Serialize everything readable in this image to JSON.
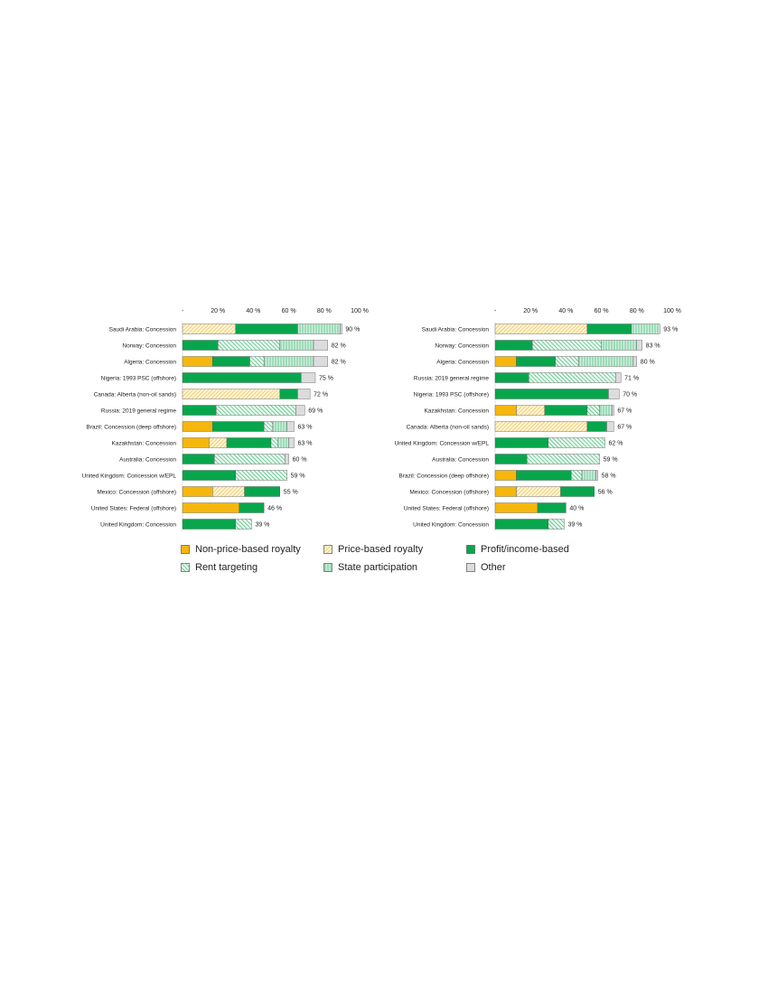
{
  "colors": {
    "non_price_royalty": "#f5b70d",
    "price_royalty": "#f7d98c",
    "profit": "#08a64c",
    "rent": "#08a64c",
    "state": "#9fdcba",
    "other": "#dcdcdc"
  },
  "legend": [
    {
      "key": "non_price_royalty",
      "label": "Non-price-based royalty"
    },
    {
      "key": "price_royalty",
      "label": "Price-based royalty"
    },
    {
      "key": "profit",
      "label": "Profit/income-based"
    },
    {
      "key": "rent",
      "label": "Rent targeting"
    },
    {
      "key": "state",
      "label": "State participation"
    },
    {
      "key": "other",
      "label": "Other"
    }
  ],
  "chart_data": [
    {
      "type": "bar",
      "orientation": "horizontal",
      "stacked": true,
      "xlim": [
        0,
        100
      ],
      "ticks": [
        "-",
        "20 %",
        "40 %",
        "60 %",
        "80 %",
        "100 %"
      ],
      "categories": [
        "Saudi Arabia: Concession",
        "Norway: Concession",
        "Algeria: Concession",
        "Nigeria: 1993 PSC (offshore)",
        "Canada: Alberta (non-oil sands)",
        "Russia: 2019 general regime",
        "Brazil: Concession (deep offshore)",
        "Kazakhstan: Concession",
        "Australia: Concession",
        "United Kingdom: Concession w/EPL",
        "Mexico: Concession (offshore)",
        "United States: Federal (offshore)",
        "United Kingdom: Concession"
      ],
      "totals": [
        "90 %",
        "82 %",
        "82 %",
        "75 %",
        "72 %",
        "69 %",
        "63 %",
        "63 %",
        "60 %",
        "59 %",
        "55 %",
        "46 %",
        "39 %"
      ],
      "series": [
        {
          "key": "non_price_royalty",
          "values": [
            0,
            0,
            17,
            0,
            0,
            0,
            17,
            15,
            0,
            0,
            17,
            32,
            0
          ]
        },
        {
          "key": "price_royalty",
          "values": [
            30,
            0,
            0,
            0,
            55,
            0,
            0,
            10,
            0,
            0,
            18,
            0,
            0
          ]
        },
        {
          "key": "profit",
          "values": [
            35,
            20,
            21,
            67,
            10,
            19,
            29,
            25,
            18,
            30,
            20,
            14,
            30
          ]
        },
        {
          "key": "rent",
          "values": [
            0,
            35,
            8,
            0,
            0,
            45,
            5,
            4,
            40,
            29,
            0,
            0,
            9
          ]
        },
        {
          "key": "state",
          "values": [
            24,
            19,
            28,
            0,
            0,
            0,
            8,
            6,
            0,
            0,
            0,
            0,
            0
          ]
        },
        {
          "key": "other",
          "values": [
            1,
            8,
            8,
            8,
            7,
            5,
            4,
            3,
            2,
            0,
            0,
            0,
            0
          ]
        }
      ]
    },
    {
      "type": "bar",
      "orientation": "horizontal",
      "stacked": true,
      "xlim": [
        0,
        100
      ],
      "ticks": [
        "-",
        "20 %",
        "40 %",
        "60 %",
        "80 %",
        "100 %"
      ],
      "categories": [
        "Saudi Arabia: Concession",
        "Norway: Concession",
        "Algeria: Concession",
        "Russia: 2019 general regime",
        "Nigeria: 1993 PSC (offshore)",
        "Kazakhstan: Concession",
        "Canada: Alberta (non-oil sands)",
        "United Kingdom: Concession w/EPL",
        "Australia: Concession",
        "Brazil: Concession (deep offshore)",
        "Mexico: Concession (offshore)",
        "United States: Federal (offshore)",
        "United Kingdom: Concession"
      ],
      "totals": [
        "93 %",
        "83 %",
        "80 %",
        "71 %",
        "70 %",
        "67 %",
        "67 %",
        "62 %",
        "59 %",
        "58 %",
        "56 %",
        "40 %",
        "39 %"
      ],
      "series": [
        {
          "key": "non_price_royalty",
          "values": [
            0,
            0,
            12,
            0,
            0,
            12,
            0,
            0,
            0,
            12,
            12,
            24,
            0
          ]
        },
        {
          "key": "price_royalty",
          "values": [
            52,
            0,
            0,
            0,
            0,
            16,
            52,
            0,
            0,
            0,
            25,
            0,
            0
          ]
        },
        {
          "key": "profit",
          "values": [
            25,
            21,
            22,
            19,
            64,
            24,
            11,
            30,
            18,
            31,
            19,
            16,
            30
          ]
        },
        {
          "key": "rent",
          "values": [
            0,
            39,
            13,
            49,
            0,
            7,
            0,
            32,
            41,
            6,
            0,
            0,
            9
          ]
        },
        {
          "key": "state",
          "values": [
            16,
            20,
            31,
            0,
            0,
            7,
            0,
            0,
            0,
            8,
            0,
            0,
            0
          ]
        },
        {
          "key": "other",
          "values": [
            0,
            3,
            2,
            3,
            6,
            1,
            4,
            0,
            0,
            1,
            0,
            0,
            0
          ]
        }
      ]
    }
  ]
}
